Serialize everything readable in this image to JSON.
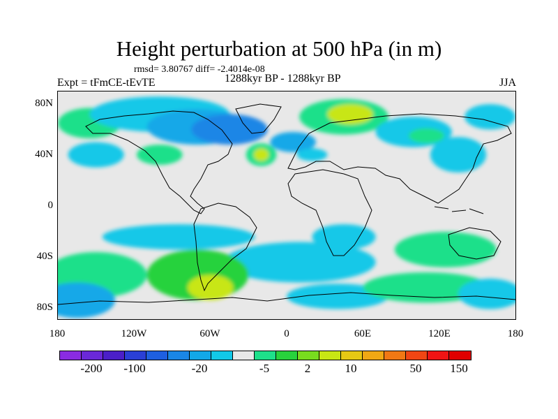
{
  "title": "Height perturbation at 500 hPa (in m)",
  "stats": "rmsd= 3.80767 diff= -2.4014e-08",
  "expt": "Expt = tFmCE-tEvTE",
  "period": "1288kyr BP - 1288kyr BP",
  "season": "JJA",
  "lat_labels": [
    "80N",
    "40N",
    "0",
    "40S",
    "80S"
  ],
  "lon_labels": [
    "180",
    "120W",
    "60W",
    "0",
    "60E",
    "120E",
    "180"
  ],
  "colorbar": {
    "colors": [
      "#8a2be2",
      "#6a28d8",
      "#4b1fc8",
      "#2a3fd6",
      "#1e5fe0",
      "#1a86e6",
      "#12a8e8",
      "#12c8e8",
      "#e8e8e8",
      "#1ee08a",
      "#28d23c",
      "#78dc1e",
      "#c8e614",
      "#e6c814",
      "#f0a814",
      "#f07814",
      "#f04614",
      "#f01414",
      "#e00000"
    ],
    "labels": [
      "-200",
      "-100",
      "-20",
      "-5",
      "2",
      "10",
      "50",
      "150"
    ]
  },
  "map": {
    "lat_range": [
      -90,
      90
    ],
    "lon_range": [
      -180,
      180
    ],
    "background": "#e8e8e8",
    "blobs": [
      {
        "lon": -150,
        "lat": 40,
        "rx": 22,
        "ry": 10,
        "color": "#12c8e8"
      },
      {
        "lon": -155,
        "lat": 65,
        "rx": 25,
        "ry": 12,
        "color": "#1ee08a"
      },
      {
        "lon": -100,
        "lat": 72,
        "rx": 55,
        "ry": 14,
        "color": "#12c8e8"
      },
      {
        "lon": -70,
        "lat": 62,
        "rx": 40,
        "ry": 14,
        "color": "#12a8e8"
      },
      {
        "lon": -45,
        "lat": 60,
        "rx": 30,
        "ry": 12,
        "color": "#1a86e6"
      },
      {
        "lon": -100,
        "lat": 40,
        "rx": 18,
        "ry": 8,
        "color": "#1ee08a"
      },
      {
        "lon": -20,
        "lat": 40,
        "rx": 12,
        "ry": 9,
        "color": "#1ee08a"
      },
      {
        "lon": -20,
        "lat": 40,
        "rx": 6,
        "ry": 5,
        "color": "#c8e614"
      },
      {
        "lon": 5,
        "lat": 50,
        "rx": 18,
        "ry": 8,
        "color": "#12a8e8"
      },
      {
        "lon": 20,
        "lat": 40,
        "rx": 12,
        "ry": 5,
        "color": "#12c8e8"
      },
      {
        "lon": 45,
        "lat": 70,
        "rx": 35,
        "ry": 14,
        "color": "#1ee08a"
      },
      {
        "lon": 50,
        "lat": 72,
        "rx": 18,
        "ry": 8,
        "color": "#c8e614"
      },
      {
        "lon": 100,
        "lat": 58,
        "rx": 30,
        "ry": 12,
        "color": "#12c8e8"
      },
      {
        "lon": 110,
        "lat": 55,
        "rx": 14,
        "ry": 6,
        "color": "#1ee08a"
      },
      {
        "lon": 135,
        "lat": 40,
        "rx": 22,
        "ry": 14,
        "color": "#12c8e8"
      },
      {
        "lon": 160,
        "lat": 70,
        "rx": 20,
        "ry": 10,
        "color": "#12c8e8"
      },
      {
        "lon": -85,
        "lat": -25,
        "rx": 60,
        "ry": 10,
        "color": "#12c8e8"
      },
      {
        "lon": 45,
        "lat": -25,
        "rx": 25,
        "ry": 10,
        "color": "#12c8e8"
      },
      {
        "lon": 10,
        "lat": -45,
        "rx": 60,
        "ry": 16,
        "color": "#12c8e8"
      },
      {
        "lon": 125,
        "lat": -35,
        "rx": 40,
        "ry": 14,
        "color": "#1ee08a"
      },
      {
        "lon": -150,
        "lat": -55,
        "rx": 40,
        "ry": 18,
        "color": "#1ee08a"
      },
      {
        "lon": -70,
        "lat": -55,
        "rx": 40,
        "ry": 20,
        "color": "#28d23c"
      },
      {
        "lon": -60,
        "lat": -65,
        "rx": 18,
        "ry": 10,
        "color": "#c8e614"
      },
      {
        "lon": -165,
        "lat": -75,
        "rx": 30,
        "ry": 14,
        "color": "#12a8e8"
      },
      {
        "lon": 40,
        "lat": -72,
        "rx": 40,
        "ry": 10,
        "color": "#12c8e8"
      },
      {
        "lon": 110,
        "lat": -65,
        "rx": 50,
        "ry": 12,
        "color": "#1ee08a"
      },
      {
        "lon": 160,
        "lat": -70,
        "rx": 25,
        "ry": 12,
        "color": "#12c8e8"
      }
    ]
  }
}
